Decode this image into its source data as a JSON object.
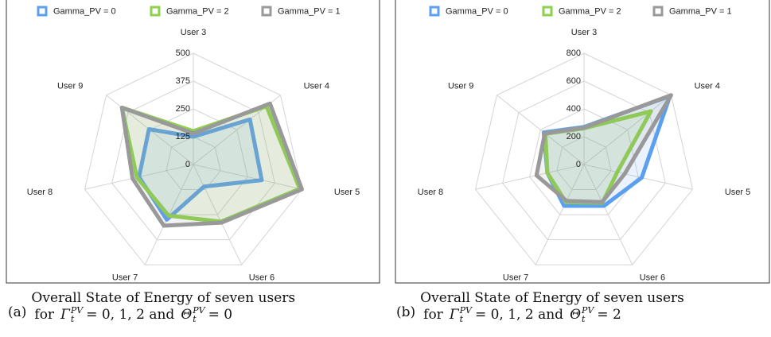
{
  "chart_data": [
    {
      "type": "radar",
      "categories": [
        "User 3",
        "User 4",
        "User 5",
        "User 6",
        "User 7",
        "User 8",
        "User 9"
      ],
      "rlim": [
        0,
        500
      ],
      "rticks": [
        0,
        125,
        250,
        375,
        500
      ],
      "grid": true,
      "legend": "top",
      "series": [
        {
          "name": "Gamma_PV = 0",
          "color": "#5b9ff0",
          "values": [
            125,
            325,
            315,
            110,
            275,
            250,
            255
          ]
        },
        {
          "name": "Gamma_PV = 2",
          "color": "#8ed14f",
          "values": [
            150,
            420,
            490,
            285,
            255,
            260,
            410
          ]
        },
        {
          "name": "Gamma_PV = 1",
          "color": "#999999",
          "values": [
            140,
            440,
            500,
            290,
            305,
            280,
            410
          ]
        }
      ]
    },
    {
      "type": "radar",
      "categories": [
        "User 3",
        "User 4",
        "User 5",
        "User 6",
        "User 7",
        "User 8",
        "User 9"
      ],
      "rlim": [
        0,
        800
      ],
      "rticks": [
        0,
        200,
        400,
        600,
        800
      ],
      "grid": true,
      "legend": "top",
      "series": [
        {
          "name": "Gamma_PV = 0",
          "color": "#5b9ff0",
          "values": [
            270,
            790,
            425,
            330,
            330,
            270,
            370
          ]
        },
        {
          "name": "Gamma_PV = 2",
          "color": "#8ed14f",
          "values": [
            260,
            615,
            245,
            305,
            300,
            270,
            355
          ]
        },
        {
          "name": "Gamma_PV = 1",
          "color": "#999999",
          "values": [
            265,
            800,
            300,
            300,
            290,
            350,
            360
          ]
        }
      ]
    }
  ],
  "captions": [
    {
      "label": "(a)",
      "line1": "Overall State of Energy of seven users",
      "line2": [
        "for",
        {
          "base": "Γ",
          "sub": "t",
          "sup": "PV"
        },
        "= 0, 1, 2 and",
        {
          "base": "Θ",
          "sub": "t",
          "sup": "PV"
        },
        "= 0"
      ]
    },
    {
      "label": "(b)",
      "line1": "Overall State of Energy of seven users",
      "line2": [
        "for",
        {
          "base": "Γ",
          "sub": "t",
          "sup": "PV"
        },
        "= 0, 1, 2 and",
        {
          "base": "Θ",
          "sub": "t",
          "sup": "PV"
        },
        "= 2"
      ]
    }
  ]
}
